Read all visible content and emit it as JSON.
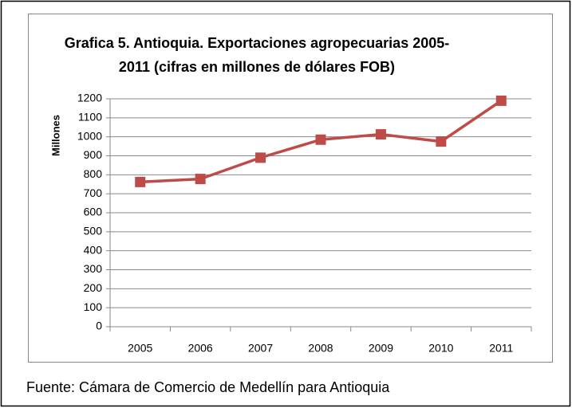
{
  "chart_data": {
    "type": "line",
    "title": [
      "Grafica 5. Antioquia. Exportaciones agropecuarias 2005-",
      "2011 (cifras en millones de dólares FOB)"
    ],
    "y_label": "Millones",
    "categories": [
      "2005",
      "2006",
      "2007",
      "2008",
      "2009",
      "2010",
      "2011"
    ],
    "values": [
      762,
      778,
      890,
      985,
      1013,
      975,
      1190
    ],
    "color": "#be4b48",
    "ylim": [
      0,
      1200
    ],
    "yticks": [
      0,
      100,
      200,
      300,
      400,
      500,
      600,
      700,
      800,
      900,
      1000,
      1100,
      1200
    ],
    "grid": true,
    "source": "Fuente: Cámara de Comercio de Medellín para Antioquia"
  }
}
